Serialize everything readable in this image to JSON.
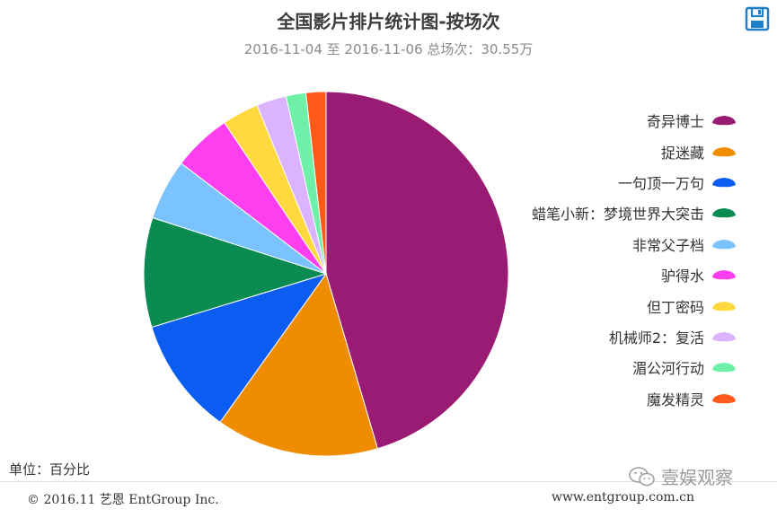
{
  "chart_data": {
    "type": "pie",
    "title": "全国影片排片统计图-按场次",
    "subtitle": "2016-11-04 至 2016-11-06 总场次：30.55万",
    "unit": "单位：百分比",
    "legend_position": "right",
    "start_angle_deg": 0,
    "direction": "clockwise",
    "slices": [
      {
        "label": "奇异博士",
        "value": 46.3,
        "color": "#9a1b73"
      },
      {
        "label": "捉迷藏",
        "value": 14.7,
        "color": "#ef8c00"
      },
      {
        "label": "一句顶一万句",
        "value": 10.6,
        "color": "#0b5cf0"
      },
      {
        "label": "蜡笔小新：梦境世界大突击",
        "value": 9.9,
        "color": "#0a8b52"
      },
      {
        "label": "非常父子档",
        "value": 5.5,
        "color": "#7ac3ff"
      },
      {
        "label": "驴得水",
        "value": 5.3,
        "color": "#ff3ef0"
      },
      {
        "label": "但丁密码",
        "value": 3.3,
        "color": "#ffd93e"
      },
      {
        "label": "机械师2：复活",
        "value": 2.7,
        "color": "#dcb3ff"
      },
      {
        "label": "湄公河行动",
        "value": 1.8,
        "color": "#6ef0a8"
      },
      {
        "label": "魔发精灵",
        "value": 1.8,
        "color": "#ff5a1a"
      }
    ]
  },
  "footer": {
    "copyright": "© 2016.11 艺恩 EntGroup Inc.",
    "url": "www.entgroup.com.cn",
    "watermark": "壹娱观察"
  },
  "icons": {
    "save": "save-icon",
    "watermark": "wechat-icon"
  }
}
